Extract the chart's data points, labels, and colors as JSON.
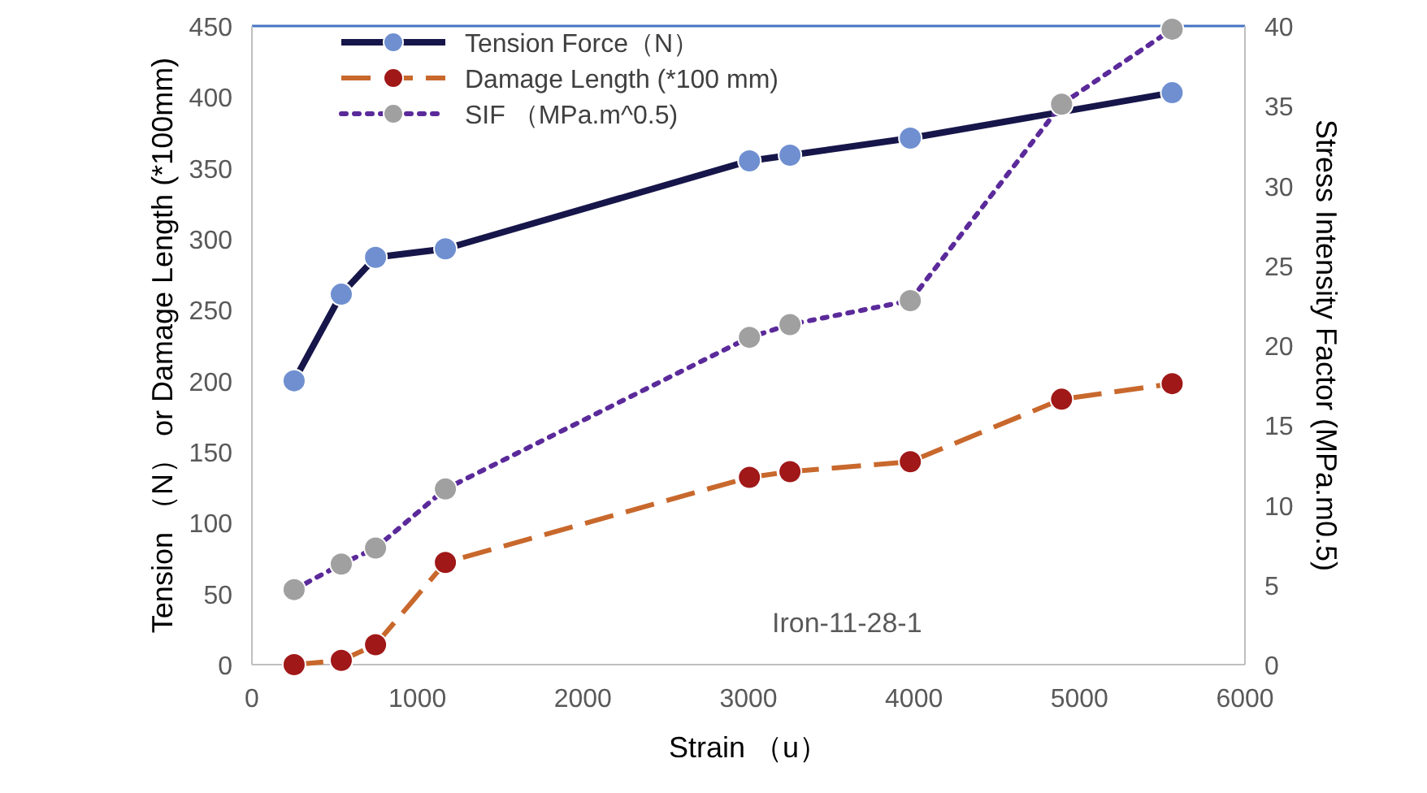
{
  "chart_data": {
    "type": "line",
    "xlabel": "Strain （u）",
    "ylabel": "Tension （N） or Damage Length (*100mm)",
    "y2label": "Stress Intensity Factor (MPa.m0.5)",
    "xlim": [
      0,
      6000
    ],
    "xticks": [
      0,
      1000,
      2000,
      3000,
      4000,
      5000,
      6000
    ],
    "ylim": [
      0,
      450
    ],
    "yticks": [
      0,
      50,
      100,
      150,
      200,
      250,
      300,
      350,
      400,
      450
    ],
    "y2lim": [
      0,
      40
    ],
    "y2ticks": [
      0,
      5,
      10,
      15,
      20,
      25,
      30,
      35,
      40
    ],
    "marker": "circle",
    "grid": false,
    "legend": "top left",
    "series": [
      {
        "name": "Tension Force（N）",
        "color": "#16164a",
        "line_style": "solid",
        "x": [
          255,
          540,
          747,
          1169,
          3006,
          3251,
          3978,
          5560
        ],
        "values": [
          200,
          261,
          287,
          293,
          355,
          359,
          371,
          403
        ]
      },
      {
        "name": "Damage Length (*100 mm)",
        "color": "#c8682c",
        "line_style": "dashed",
        "x": [
          255,
          540,
          747,
          1169,
          3006,
          3251,
          3978,
          4892,
          5560
        ],
        "values": [
          0,
          3,
          14,
          72,
          132,
          136,
          143,
          187,
          198
        ]
      },
      {
        "name": "SIF （MPa.m^0.5)",
        "color": "#5b2a9a",
        "line_style": "dotted",
        "axis": "y2",
        "x": [
          255,
          540,
          747,
          1169,
          3006,
          3251,
          3978,
          4892,
          5560
        ],
        "values": [
          4.7,
          6.3,
          7.3,
          11.0,
          20.5,
          21.3,
          22.8,
          35.1,
          39.8
        ]
      }
    ],
    "annotations": [
      "Iron-11-28-1"
    ]
  }
}
